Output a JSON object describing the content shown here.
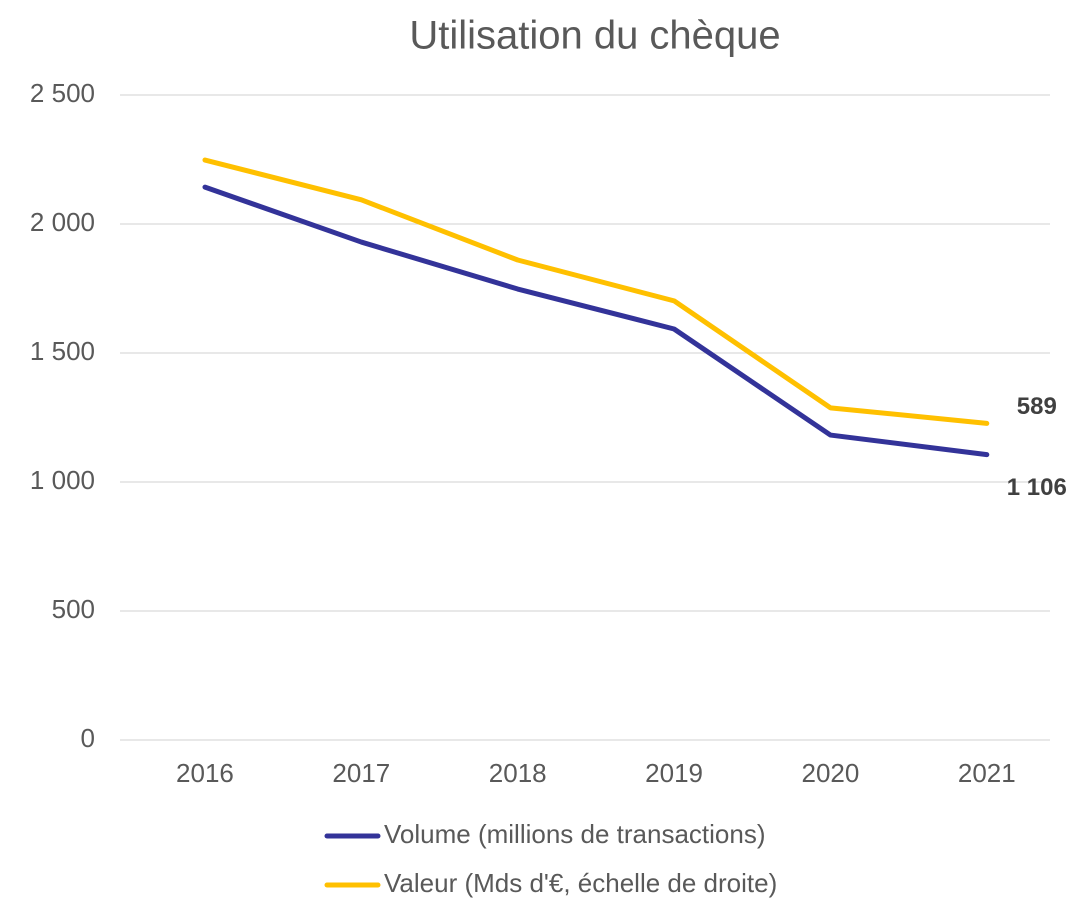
{
  "chart_data": {
    "type": "line",
    "title": "Utilisation du chèque",
    "categories": [
      "2016",
      "2017",
      "2018",
      "2019",
      "2020",
      "2021"
    ],
    "series": [
      {
        "name": "Volume (millions de transactions)",
        "color": "#333399",
        "values": [
          2143,
          1930,
          1748,
          1593,
          1182,
          1106
        ],
        "value_labels": [
          null,
          null,
          null,
          null,
          null,
          "1 106"
        ]
      },
      {
        "name": "Valeur (Mds d'€, échelle de droite)",
        "color": "#ffc000",
        "axis": "y2",
        "values": [
          1079,
          1005,
          893,
          817,
          618,
          589
        ],
        "value_labels": [
          null,
          null,
          null,
          null,
          null,
          "589"
        ]
      }
    ],
    "ylim": [
      0,
      2500
    ],
    "yticks": [
      0,
      500,
      {
        "value": 1000,
        "label": "1 000"
      },
      {
        "value": 1500,
        "label": "1 500"
      },
      {
        "value": 2000,
        "label": "2 000"
      },
      {
        "value": 2500,
        "label": "2 500"
      }
    ],
    "y2lim": [
      0,
      1200
    ],
    "grid": true,
    "legend": "bottom"
  }
}
